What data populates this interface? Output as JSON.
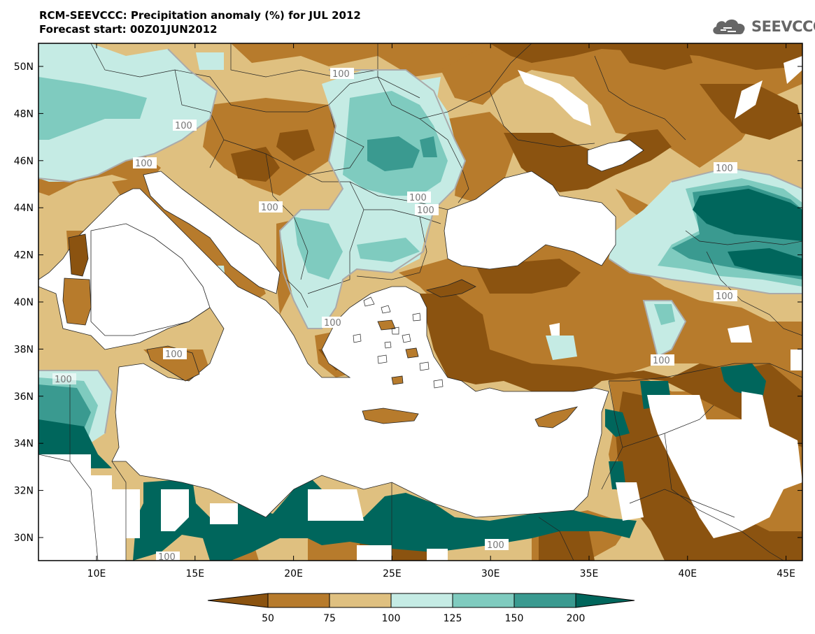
{
  "header": {
    "title_line1": "RCM-SEEVCCC: Precipitation anomaly (%) for JUL 2012",
    "title_line2": "Forecast start: 00Z01JUN2012"
  },
  "logo": {
    "text": "SEEVCCC",
    "icon": "cloud-logo-icon"
  },
  "axes": {
    "lat_labels": [
      "50N",
      "48N",
      "46N",
      "44N",
      "42N",
      "40N",
      "38N",
      "36N",
      "34N",
      "32N",
      "30N"
    ],
    "lon_labels": [
      "10E",
      "15E",
      "20E",
      "25E",
      "30E",
      "35E",
      "40E",
      "45E"
    ]
  },
  "colorbar": {
    "labels": [
      "50",
      "75",
      "100",
      "125",
      "150",
      "200"
    ],
    "colors": [
      "#8b5310",
      "#b77b2c",
      "#dfc080",
      "#c5ebe4",
      "#7fcbbf",
      "#3a9a90",
      "#00665c"
    ]
  },
  "contour_labels": [
    "100"
  ],
  "colors": {
    "sea": "#ffffff",
    "land_border": "#222222",
    "contour_line": "#aaaaaa"
  }
}
